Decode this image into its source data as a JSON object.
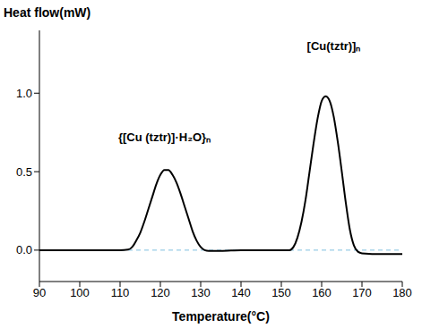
{
  "chart_data": {
    "type": "line",
    "x_label": "Temperature(°C)",
    "y_label": "Heat flow(mW)",
    "x": [
      90,
      100,
      110,
      112,
      113,
      114,
      115,
      116,
      117,
      118,
      119,
      120,
      121,
      122,
      123,
      124,
      125,
      126,
      127,
      128,
      129,
      130,
      131,
      132,
      135,
      140,
      150,
      152,
      153,
      154,
      155,
      156,
      157,
      158,
      159,
      160,
      161,
      162,
      163,
      164,
      165,
      166,
      167,
      168,
      169,
      170,
      175,
      180
    ],
    "values": [
      0,
      0,
      0,
      0.003,
      0.02,
      0.06,
      0.11,
      0.18,
      0.26,
      0.34,
      0.42,
      0.48,
      0.51,
      0.51,
      0.48,
      0.43,
      0.36,
      0.28,
      0.2,
      0.12,
      0.06,
      0.02,
      0,
      -0.005,
      -0.005,
      0,
      0,
      0,
      0.02,
      0.08,
      0.18,
      0.32,
      0.5,
      0.68,
      0.84,
      0.95,
      0.98,
      0.95,
      0.85,
      0.69,
      0.5,
      0.3,
      0.13,
      0.03,
      -0.01,
      -0.02,
      -0.025,
      -0.025
    ],
    "color": "#000000",
    "xlim": [
      90,
      180
    ],
    "xticks": [
      90,
      100,
      110,
      120,
      130,
      140,
      150,
      160,
      170,
      180
    ],
    "ylim": [
      -0.2,
      1.4
    ],
    "yticks": [
      {
        "value": 0,
        "label": "0.0"
      },
      {
        "value": 0.5,
        "label": "0.5"
      },
      {
        "value": 1,
        "label": "1.0"
      }
    ],
    "reference_line": {
      "y": 0,
      "color": "#7fbfdf",
      "line_style": "dashed"
    },
    "annotations": [
      {
        "text": "{[Cu (tztr)]·H₂O}ₙ",
        "x": 121,
        "y": 0.72
      },
      {
        "text": "[Cu(tztr)]ₙ",
        "x": 163,
        "y": 1.3
      }
    ]
  }
}
